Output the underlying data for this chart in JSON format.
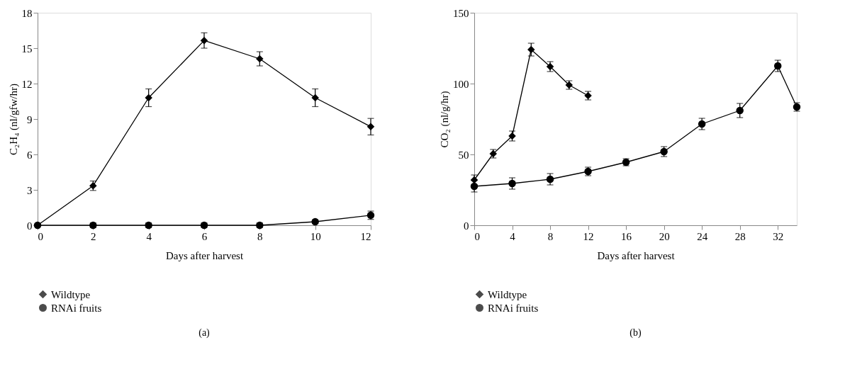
{
  "chart_data": [
    {
      "type": "line",
      "xlabel": "Days after harvest",
      "ylabel": "C₂H₄ (nl/gfw/hr)",
      "annotations": [
        "(a)"
      ],
      "xlim": [
        0,
        12
      ],
      "xticks": [
        0,
        2,
        4,
        6,
        8,
        10,
        12
      ],
      "ylim": [
        0,
        18
      ],
      "yticks": [
        0,
        3,
        6,
        9,
        12,
        15,
        18
      ],
      "grid": false,
      "legend": "bottom left",
      "series": [
        {
          "name": "Wildtype",
          "color": "#000000",
          "marker": "diamond",
          "x": [
            0,
            2,
            4,
            6,
            8,
            10,
            12
          ],
          "values": [
            0,
            3.35,
            10.8,
            15.65,
            14.1,
            10.8,
            8.35
          ],
          "errors": [
            null,
            0.4,
            0.75,
            0.65,
            0.6,
            0.75,
            0.7
          ]
        },
        {
          "name": "RNAi fruits",
          "color": "#000000",
          "marker": "circle",
          "x": [
            0,
            2,
            4,
            6,
            8,
            10,
            12
          ],
          "values": [
            0,
            0,
            0,
            0,
            0,
            0.3,
            0.85
          ],
          "errors": [
            null,
            0.2,
            0.2,
            0.2,
            0.2,
            0.15,
            0.35
          ]
        }
      ]
    },
    {
      "type": "line",
      "xlabel": "Days after harvest",
      "ylabel": "CO₂ (nl/g/hr)",
      "annotations": [
        "(b)"
      ],
      "xlim": [
        0,
        34
      ],
      "xticks": [
        0,
        4,
        8,
        12,
        16,
        20,
        24,
        28,
        32
      ],
      "ylim": [
        0,
        150
      ],
      "yticks": [
        0,
        50,
        100,
        150
      ],
      "grid": false,
      "legend": "bottom left",
      "series": [
        {
          "name": "Wildtype",
          "color": "#000000",
          "marker": "diamond",
          "x": [
            0,
            2,
            4,
            6,
            8,
            10,
            12
          ],
          "values": [
            32,
            50.5,
            63,
            124,
            112,
            99,
            91.5
          ],
          "errors": [
            3.5,
            3,
            3.5,
            4.5,
            3.5,
            3,
            3
          ]
        },
        {
          "name": "RNAi fruits",
          "color": "#000000",
          "marker": "circle",
          "x": [
            0,
            4,
            8,
            12,
            16,
            20,
            24,
            28,
            32,
            34
          ],
          "values": [
            27.5,
            29.5,
            32.5,
            38,
            44.5,
            52,
            71.5,
            81,
            112.5,
            83.5
          ],
          "errors": [
            4,
            4,
            4,
            3,
            2.5,
            3.5,
            4,
            5,
            4,
            3
          ]
        }
      ]
    }
  ]
}
